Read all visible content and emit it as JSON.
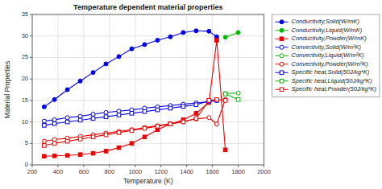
{
  "chart_data": {
    "type": "line",
    "title": "Temperature dependent material properties",
    "xlabel": "Temperature (K)",
    "ylabel": "Material Properties",
    "xlim": [
      200,
      2000
    ],
    "ylim": [
      0,
      35
    ],
    "xticks": [
      200,
      400,
      600,
      800,
      1000,
      1200,
      1400,
      1600,
      1800,
      2000
    ],
    "yticks": [
      0,
      5,
      10,
      15,
      20,
      25,
      30,
      35
    ],
    "grid": true,
    "legend": "right",
    "series": [
      {
        "name": "Conductivity,Solid(W/mK)",
        "color": "#0000EE",
        "marker": "circle",
        "line_style": "solid",
        "x": [
          293,
          373,
          473,
          573,
          673,
          773,
          873,
          973,
          1073,
          1173,
          1273,
          1373,
          1473,
          1573,
          1633
        ],
        "values": [
          13.5,
          15.2,
          17.5,
          19.5,
          21.5,
          23.5,
          25.2,
          27.0,
          28.0,
          29.0,
          29.8,
          30.8,
          31.2,
          31.1,
          29.8
        ]
      },
      {
        "name": "Conductivity,Liquid(W/mK)",
        "color": "#00BB00",
        "marker": "circle",
        "line_style": "solid",
        "x": [
          1700,
          1800
        ],
        "values": [
          29.7,
          30.8
        ]
      },
      {
        "name": "Conductivity,Powder(W/mK)",
        "color": "#EE0000",
        "marker": "square",
        "line_style": "solid",
        "x": [
          293,
          373,
          473,
          573,
          673,
          773,
          873,
          973,
          1073,
          1173,
          1273,
          1373,
          1473,
          1573,
          1633,
          1700
        ],
        "values": [
          2.0,
          2.1,
          2.2,
          2.4,
          2.7,
          3.2,
          4.0,
          5.0,
          6.5,
          8.2,
          9.5,
          10.5,
          12.0,
          14.5,
          29.0,
          3.5
        ]
      },
      {
        "name": "Convectivity,Solid(W/m²K)",
        "color": "#0000EE",
        "marker": "open-circle",
        "line_style": "solid",
        "x": [
          293,
          373,
          473,
          573,
          673,
          773,
          873,
          973,
          1073,
          1173,
          1273,
          1373,
          1473,
          1573,
          1633
        ],
        "values": [
          10.2,
          10.5,
          11.0,
          11.3,
          11.8,
          12.2,
          12.5,
          12.8,
          13.2,
          13.5,
          13.8,
          14.1,
          14.4,
          14.7,
          15.0
        ]
      },
      {
        "name": "Convectivity,Liquid(W/m²K)",
        "color": "#00BB00",
        "marker": "open-circle",
        "line_style": "solid",
        "x": [
          1700,
          1800
        ],
        "values": [
          16.6,
          16.7
        ]
      },
      {
        "name": "Convectivity,Powder(W/m²K)",
        "color": "#EE0000",
        "marker": "open-circle",
        "line_style": "solid",
        "x": [
          293,
          373,
          473,
          573,
          673,
          773,
          873,
          973,
          1073,
          1173,
          1273,
          1373,
          1473,
          1573,
          1633,
          1700
        ],
        "values": [
          5.5,
          5.9,
          6.2,
          6.6,
          7.0,
          7.4,
          7.8,
          8.2,
          8.7,
          9.1,
          9.6,
          10.1,
          10.7,
          11.0,
          9.5,
          15.2
        ]
      },
      {
        "name": "Specific heat,Solid(50J/kg*K)",
        "color": "#0000EE",
        "marker": "open-square",
        "line_style": "solid",
        "x": [
          293,
          373,
          473,
          573,
          673,
          773,
          873,
          973,
          1073,
          1173,
          1273,
          1373,
          1473,
          1573,
          1633
        ],
        "values": [
          9.2,
          9.6,
          10.0,
          10.4,
          10.8,
          11.2,
          11.6,
          12.0,
          12.4,
          12.8,
          13.2,
          13.6,
          14.0,
          14.9,
          15.0
        ]
      },
      {
        "name": "Specific heat,Liquid(50J/kg*K)",
        "color": "#00BB00",
        "marker": "open-square",
        "line_style": "solid",
        "x": [
          1700,
          1800
        ],
        "values": [
          16.5,
          15.2
        ]
      },
      {
        "name": "Specific heat,Powder(50J/kg*K)",
        "color": "#EE0000",
        "marker": "open-square",
        "line_style": "solid",
        "x": [
          293,
          373,
          473,
          573,
          673,
          773,
          873,
          973,
          1073,
          1173,
          1273,
          1373,
          1473,
          1573,
          1633,
          1700
        ],
        "values": [
          4.5,
          5.0,
          5.5,
          6.0,
          6.5,
          7.0,
          7.5,
          8.0,
          8.5,
          9.0,
          9.5,
          10.0,
          10.8,
          15.0,
          15.2,
          15.0
        ]
      }
    ]
  }
}
